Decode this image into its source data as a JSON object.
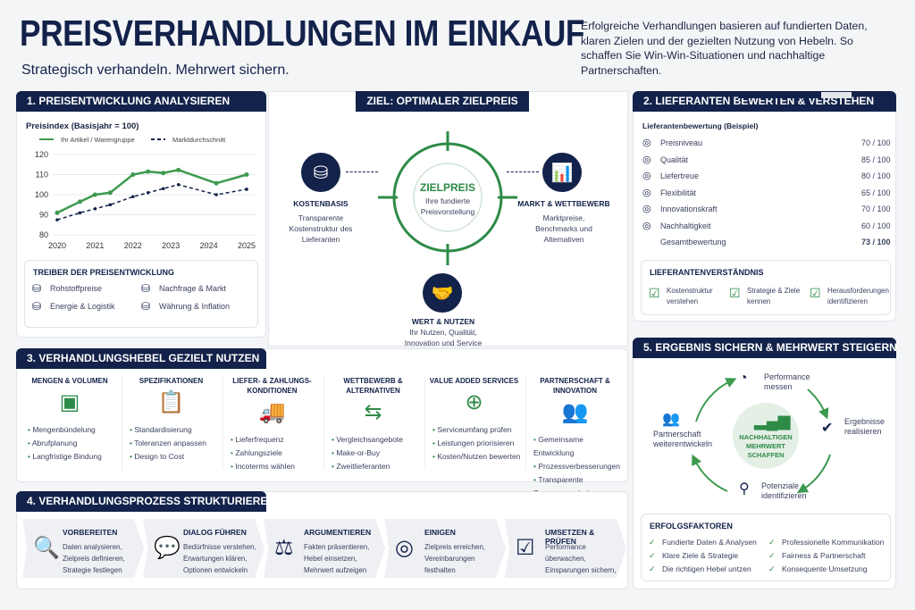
{
  "header": {
    "title": "PREISVERHANDLUNGEN IM EINKAUF",
    "subtitle": "Strategisch verhandeln. Mehrwert sichern.",
    "intro": "Erfolgreiche Verhandlungen basieren auf fundierten Daten, klaren Zielen und der gezielten Nutzung von Hebeln. So schaffen Sie Win-Win-Situationen und nachhaltige Partnerschaften."
  },
  "colors": {
    "navy": "#13224a",
    "green": "#3d9a50",
    "grey": "#e3e6ea"
  },
  "s1": {
    "title": "1.  PREISENTWICKLUNG ANALYSIEREN",
    "drivers_title": "TREIBER DER PREISENTWICKLUNG",
    "drivers": [
      {
        "label": "Rohstoffpreise",
        "icon": "coins-stack-icon"
      },
      {
        "label": "Nachfrage & Markt",
        "icon": "trend-chart-icon"
      },
      {
        "label": "Energie & Logistik",
        "icon": "database-icon"
      },
      {
        "label": "Währung & Inflation",
        "icon": "coin-dollar-icon"
      }
    ]
  },
  "chart_data": {
    "type": "line",
    "title": "Preisindex (Basisjahr = 100)",
    "xlabel": "",
    "ylabel": "",
    "ylim": [
      80,
      120
    ],
    "yticks": [
      80,
      90,
      100,
      110,
      120
    ],
    "xticks": [
      2020,
      2021,
      2022,
      2023,
      2024,
      2025
    ],
    "grid": true,
    "legend": "top",
    "x": [
      2020,
      2020.6,
      2021,
      2021.4,
      2022,
      2022.4,
      2022.8,
      2023.2,
      2024.2,
      2025
    ],
    "series": [
      {
        "name": "Ihr Artikel / Warengruppe",
        "style": "solid",
        "color": "#3d9a50",
        "values": [
          91,
          96.5,
          100,
          101,
          110,
          111.5,
          110.8,
          112.3,
          105.7,
          110
        ]
      },
      {
        "name": "Marktdurchschnitt",
        "style": "dashed",
        "color": "#13224a",
        "values": [
          87.5,
          91,
          93,
          95,
          99,
          101,
          103,
          105,
          100,
          102.7
        ]
      }
    ]
  },
  "ziel": {
    "title": "ZIEL: OPTIMALER ZIELPREIS",
    "center_title": "ZIELPREIS",
    "center_text": "Ihre fundierte Preisvorstellung",
    "kosten": {
      "title": "KOSTENBASIS",
      "text": "Transparente Kostenstruktur des Lieferanten"
    },
    "markt": {
      "title": "MARKT & WETTBEWERB",
      "text": "Marktpreise, Benchmarks und Alternativen"
    },
    "wert": {
      "title": "WERT & NUTZEN",
      "text": "Ihr Nutzen, Qualität, Innovation und Service"
    }
  },
  "s2": {
    "title": "2.  LIEFERANTEN BEWERTEN & VERSTEHEN",
    "subtitle": "Lieferantenbewertung (Beispiel)",
    "ratings": [
      {
        "label": "Preisniveau",
        "value": 70,
        "text": "70 / 100",
        "icon": "dollar-icon"
      },
      {
        "label": "Qualität",
        "value": 85,
        "text": "85 / 100",
        "icon": "quality-badge-icon"
      },
      {
        "label": "Liefertreue",
        "value": 80,
        "text": "80 / 100",
        "icon": "delivery-icon"
      },
      {
        "label": "Flexibilität",
        "value": 65,
        "text": "65 / 100",
        "icon": "flex-icon"
      },
      {
        "label": "Innovationskraft",
        "value": 70,
        "text": "70 / 100",
        "icon": "growth-icon"
      },
      {
        "label": "Nachhaltigkeit",
        "value": 60,
        "text": "60 / 100",
        "icon": "sustainability-icon"
      },
      {
        "label": "Gesamtbewertung",
        "value": 73,
        "text": "73 / 100",
        "icon": ""
      }
    ],
    "understanding_title": "LIEFERANTENVERSTÄNDNIS",
    "understanding": [
      "Kostenstruktur verstehen",
      "Strategie & Ziele kennen",
      "Herausforderungen identifizieren"
    ]
  },
  "s3": {
    "title": "3.  VERHANDLUNGSHEBEL GEZIELT NUTZEN",
    "levers": [
      {
        "title": "MENGEN & VOLUMEN",
        "icon": "cubes-icon",
        "glyph": "▣",
        "items": [
          "Mengenbündelung",
          "Abrufplanung",
          "Langfristige Bindung"
        ]
      },
      {
        "title": "SPEZIFIKATIONEN",
        "icon": "clipboard-icon",
        "glyph": "📋",
        "items": [
          "Standardisierung",
          "Toleranzen anpassen",
          "Design to Cost"
        ]
      },
      {
        "title": "LIEFER- & ZAHLUNGS-KONDITIONEN",
        "icon": "truck-icon",
        "glyph": "🚚",
        "items": [
          "Lieferfrequenz",
          "Zahlungsziele",
          "Incoterms wählen"
        ]
      },
      {
        "title": "WETTBEWERB & ALTERNATIVEN",
        "icon": "signpost-icon",
        "glyph": "⇆",
        "items": [
          "Vergleichsangebote",
          "Make-or-Buy",
          "Zweitlieferanten"
        ]
      },
      {
        "title": "VALUE ADDED SERVICES",
        "icon": "hand-plus-icon",
        "glyph": "⊕",
        "items": [
          "Serviceumfang prüfen",
          "Leistungen priorisieren",
          "Kosten/Nutzen bewerten"
        ]
      },
      {
        "title": "PARTNERSCHAFT & INNOVATION",
        "icon": "people-icon",
        "glyph": "👥",
        "items": [
          "Gemeinsame Entwicklung",
          "Prozessverbesserungen",
          "Transparente Zusammenarbeit"
        ]
      }
    ]
  },
  "s4": {
    "title": "4.  VERHANDLUNGSPROZESS STRUKTURIEREN",
    "steps": [
      {
        "title": "VORBEREITEN",
        "text": "Daten analysieren, Zielpreis definieren, Strategie festlegen",
        "icon": "magnifier-icon",
        "glyph": "🔍"
      },
      {
        "title": "DIALOG FÜHREN",
        "text": "Bedürfnisse verstehen, Erwartungen klären, Optionen entwickeln",
        "icon": "speech-bubble-icon",
        "glyph": "💬"
      },
      {
        "title": "ARGUMENTIEREN",
        "text": "Fakten präsentieren, Hebel einsetzen, Mehrwert aufzeigen",
        "icon": "scales-icon",
        "glyph": "⚖"
      },
      {
        "title": "EINIGEN",
        "text": "Zielpreis erreichen, Vereinbarungen festhalten",
        "icon": "target-icon",
        "glyph": "◎"
      },
      {
        "title": "UMSETZEN & PRÜFEN",
        "text": "Performance überwachen, Einsparungen sichern, Beziehung stärken",
        "icon": "checklist-icon",
        "glyph": "☑"
      }
    ]
  },
  "s5": {
    "title": "5.  ERGEBNIS SICHERN & MEHRWERT STEIGERN",
    "center": "NACHHALTIGEN MEHRWERT SCHAFFEN",
    "cycle": {
      "performance": "Performance messen",
      "ergebnisse": "Ergebnisse realisieren",
      "potenziale": "Potenziale identifizieren",
      "partner": "Partnerschaft weiterentwickeln"
    },
    "factors_title": "ERFOLGSFAKTOREN",
    "factors": [
      "Fundierte Daten & Analysen",
      "Professionelle Kommunikation",
      "Klare Ziele & Strategie",
      "Fairness & Partnerschaft",
      "Die richtigen Hebel untzen",
      "Konsequente Umsetzung"
    ]
  }
}
